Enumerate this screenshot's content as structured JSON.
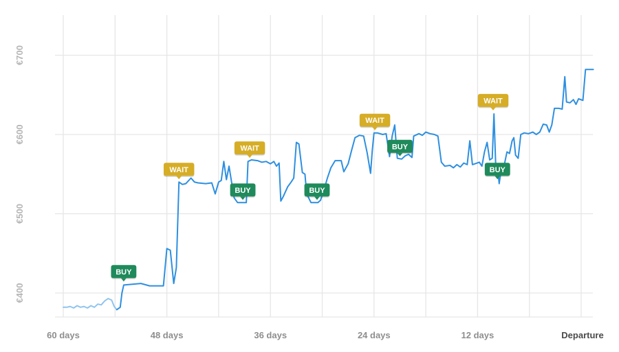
{
  "chart_data": {
    "type": "line",
    "title": "",
    "xlabel": "",
    "ylabel": "",
    "x_axis": {
      "unit": "days before departure",
      "range": [
        60,
        0
      ],
      "ticks": [
        {
          "value": 60,
          "label": "60 days"
        },
        {
          "value": 48,
          "label": "48 days"
        },
        {
          "value": 36,
          "label": "36 days"
        },
        {
          "value": 24,
          "label": "24 days"
        },
        {
          "value": 12,
          "label": "12 days"
        },
        {
          "value": 0,
          "label": "Departure"
        }
      ],
      "grid_step": 6
    },
    "y_axis": {
      "range": [
        370,
        730
      ],
      "ticks": [
        {
          "value": 400,
          "label": "€400"
        },
        {
          "value": 500,
          "label": "€500"
        },
        {
          "value": 600,
          "label": "€600"
        },
        {
          "value": 700,
          "label": "€700"
        }
      ],
      "grid": true
    },
    "series": [
      {
        "color": "#2d8fe0",
        "early_color": "#8fc4ee",
        "early_until_days": 53.8,
        "points": [
          [
            60,
            382
          ],
          [
            59.6,
            382
          ],
          [
            59.2,
            383
          ],
          [
            58.8,
            381
          ],
          [
            58.4,
            384
          ],
          [
            58,
            382
          ],
          [
            57.6,
            383
          ],
          [
            57.2,
            381
          ],
          [
            56.8,
            384
          ],
          [
            56.4,
            382
          ],
          [
            56,
            386
          ],
          [
            55.6,
            385
          ],
          [
            55.2,
            390
          ],
          [
            54.8,
            393
          ],
          [
            54.4,
            391
          ],
          [
            54.1,
            383
          ],
          [
            53.8,
            379
          ],
          [
            53.4,
            382
          ],
          [
            53.2,
            400
          ],
          [
            53,
            410
          ],
          [
            52,
            411
          ],
          [
            51,
            412
          ],
          [
            50,
            409
          ],
          [
            49,
            409
          ],
          [
            48.4,
            409
          ],
          [
            48,
            456
          ],
          [
            47.6,
            454
          ],
          [
            47.2,
            412
          ],
          [
            46.9,
            432
          ],
          [
            46.6,
            540
          ],
          [
            46.2,
            537
          ],
          [
            45.8,
            538
          ],
          [
            45.2,
            545
          ],
          [
            44.8,
            540
          ],
          [
            44.4,
            539
          ],
          [
            43.5,
            538
          ],
          [
            42.8,
            539
          ],
          [
            42.4,
            525
          ],
          [
            42,
            540
          ],
          [
            41.7,
            542
          ],
          [
            41.4,
            566
          ],
          [
            41.1,
            543
          ],
          [
            40.8,
            560
          ],
          [
            40.5,
            540
          ],
          [
            40.2,
            520
          ],
          [
            39.8,
            514
          ],
          [
            39.3,
            514
          ],
          [
            38.8,
            514
          ],
          [
            38.6,
            566
          ],
          [
            38.2,
            568
          ],
          [
            37.5,
            567
          ],
          [
            37,
            565
          ],
          [
            36.5,
            566
          ],
          [
            36,
            563
          ],
          [
            35.6,
            566
          ],
          [
            35.3,
            560
          ],
          [
            35,
            564
          ],
          [
            34.8,
            516
          ],
          [
            34.5,
            522
          ],
          [
            34,
            534
          ],
          [
            33.6,
            540
          ],
          [
            33.3,
            545
          ],
          [
            33,
            590
          ],
          [
            32.7,
            588
          ],
          [
            32.3,
            552
          ],
          [
            32,
            550
          ],
          [
            31.8,
            525
          ],
          [
            31.3,
            514
          ],
          [
            30.5,
            514
          ],
          [
            30.2,
            517
          ],
          [
            29.8,
            530
          ],
          [
            29.4,
            545
          ],
          [
            29,
            558
          ],
          [
            28.5,
            567
          ],
          [
            27.8,
            567
          ],
          [
            27.5,
            553
          ],
          [
            27,
            563
          ],
          [
            26.6,
            580
          ],
          [
            26.2,
            596
          ],
          [
            25.7,
            599
          ],
          [
            25.2,
            598
          ],
          [
            24.8,
            577
          ],
          [
            24.4,
            551
          ],
          [
            24.2,
            580
          ],
          [
            24,
            602
          ],
          [
            23.6,
            602
          ],
          [
            23,
            600
          ],
          [
            22.6,
            601
          ],
          [
            22.2,
            572
          ],
          [
            21.9,
            598
          ],
          [
            21.6,
            612
          ],
          [
            21.3,
            570
          ],
          [
            20.8,
            569
          ],
          [
            20.4,
            573
          ],
          [
            20,
            575
          ],
          [
            19.6,
            571
          ],
          [
            19.4,
            598
          ],
          [
            18.8,
            601
          ],
          [
            18.4,
            599
          ],
          [
            18,
            603
          ],
          [
            17.5,
            601
          ],
          [
            17,
            600
          ],
          [
            16.6,
            598
          ],
          [
            16.2,
            565
          ],
          [
            15.8,
            560
          ],
          [
            15.2,
            561
          ],
          [
            14.8,
            558
          ],
          [
            14.4,
            562
          ],
          [
            14,
            559
          ],
          [
            13.6,
            564
          ],
          [
            13.2,
            562
          ],
          [
            12.9,
            592
          ],
          [
            12.6,
            562
          ],
          [
            12.3,
            563
          ],
          [
            11.8,
            565
          ],
          [
            11.5,
            560
          ],
          [
            11.2,
            578
          ],
          [
            10.9,
            590
          ],
          [
            10.6,
            568
          ],
          [
            10.3,
            570
          ],
          [
            10.1,
            626
          ],
          [
            9.9,
            560
          ],
          [
            9.7,
            560
          ],
          [
            9.5,
            538
          ],
          [
            9.2,
            560
          ],
          [
            8.9,
            562
          ],
          [
            8.6,
            578
          ],
          [
            8.3,
            576
          ],
          [
            8,
            592
          ],
          [
            7.8,
            596
          ],
          [
            7.6,
            574
          ],
          [
            7.3,
            570
          ],
          [
            7,
            600
          ],
          [
            6.6,
            602
          ],
          [
            6.1,
            601
          ],
          [
            5.6,
            603
          ],
          [
            5.2,
            600
          ],
          [
            4.8,
            603
          ],
          [
            4.4,
            613
          ],
          [
            4,
            612
          ],
          [
            3.7,
            603
          ],
          [
            3.4,
            612
          ],
          [
            3.1,
            633
          ],
          [
            2.6,
            633
          ],
          [
            2.2,
            632
          ],
          [
            1.9,
            673
          ],
          [
            1.7,
            641
          ],
          [
            1.3,
            640
          ],
          [
            0.9,
            644
          ],
          [
            0.6,
            638
          ],
          [
            0.3,
            645
          ],
          [
            -0.2,
            643
          ],
          [
            -0.5,
            682
          ],
          [
            -1.4,
            682
          ]
        ]
      }
    ],
    "annotations": [
      {
        "label": "BUY",
        "kind": "buy",
        "days": 53.0,
        "price": 411,
        "placement": "above"
      },
      {
        "label": "WAIT",
        "kind": "wait",
        "days": 46.6,
        "price": 540,
        "placement": "above"
      },
      {
        "label": "BUY",
        "kind": "buy",
        "days": 39.2,
        "price": 514,
        "placement": "above"
      },
      {
        "label": "WAIT",
        "kind": "wait",
        "days": 38.4,
        "price": 567,
        "placement": "above"
      },
      {
        "label": "BUY",
        "kind": "buy",
        "days": 30.6,
        "price": 514,
        "placement": "above"
      },
      {
        "label": "WAIT",
        "kind": "wait",
        "days": 23.9,
        "price": 602,
        "placement": "above"
      },
      {
        "label": "BUY",
        "kind": "buy",
        "days": 21.0,
        "price": 569,
        "placement": "above"
      },
      {
        "label": "WAIT",
        "kind": "wait",
        "days": 10.2,
        "price": 627,
        "placement": "above"
      },
      {
        "label": "BUY",
        "kind": "buy",
        "days": 9.7,
        "price": 540,
        "placement": "above"
      }
    ],
    "colors": {
      "buy": "#1f8a5b",
      "wait": "#d6ad26",
      "line": "#2d8fe0",
      "grid": "#e6e6e6"
    }
  }
}
